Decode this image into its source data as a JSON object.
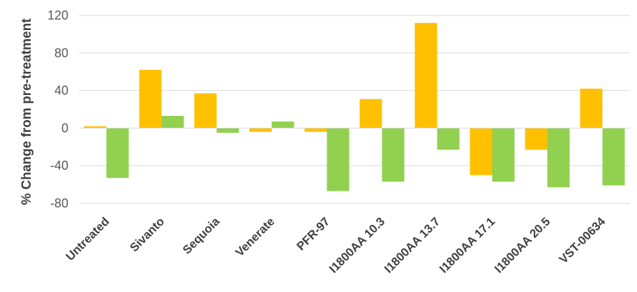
{
  "chart_data": {
    "type": "bar",
    "title": "",
    "xlabel": "",
    "ylabel": "% Change from pre-treatment",
    "ylim": [
      -80,
      120
    ],
    "yticks": [
      -80,
      -40,
      0,
      40,
      80,
      120
    ],
    "grid": true,
    "legend": "none",
    "categories": [
      "Untreated",
      "Sivanto",
      "Sequoia",
      "Venerate",
      "PFR-97",
      "I1800AA 10.3",
      "I1800AA 13.7",
      "I1800AA 17.1",
      "I1800AA 20.5",
      "VST-00634"
    ],
    "series": [
      {
        "color": "#ffc000",
        "values": [
          2,
          62,
          37,
          -4,
          -4,
          31,
          112,
          -50,
          -23,
          42
        ]
      },
      {
        "color": "#92d050",
        "values": [
          -53,
          13,
          -5,
          7,
          -67,
          -57,
          -23,
          -57,
          -63,
          -61
        ]
      }
    ]
  }
}
